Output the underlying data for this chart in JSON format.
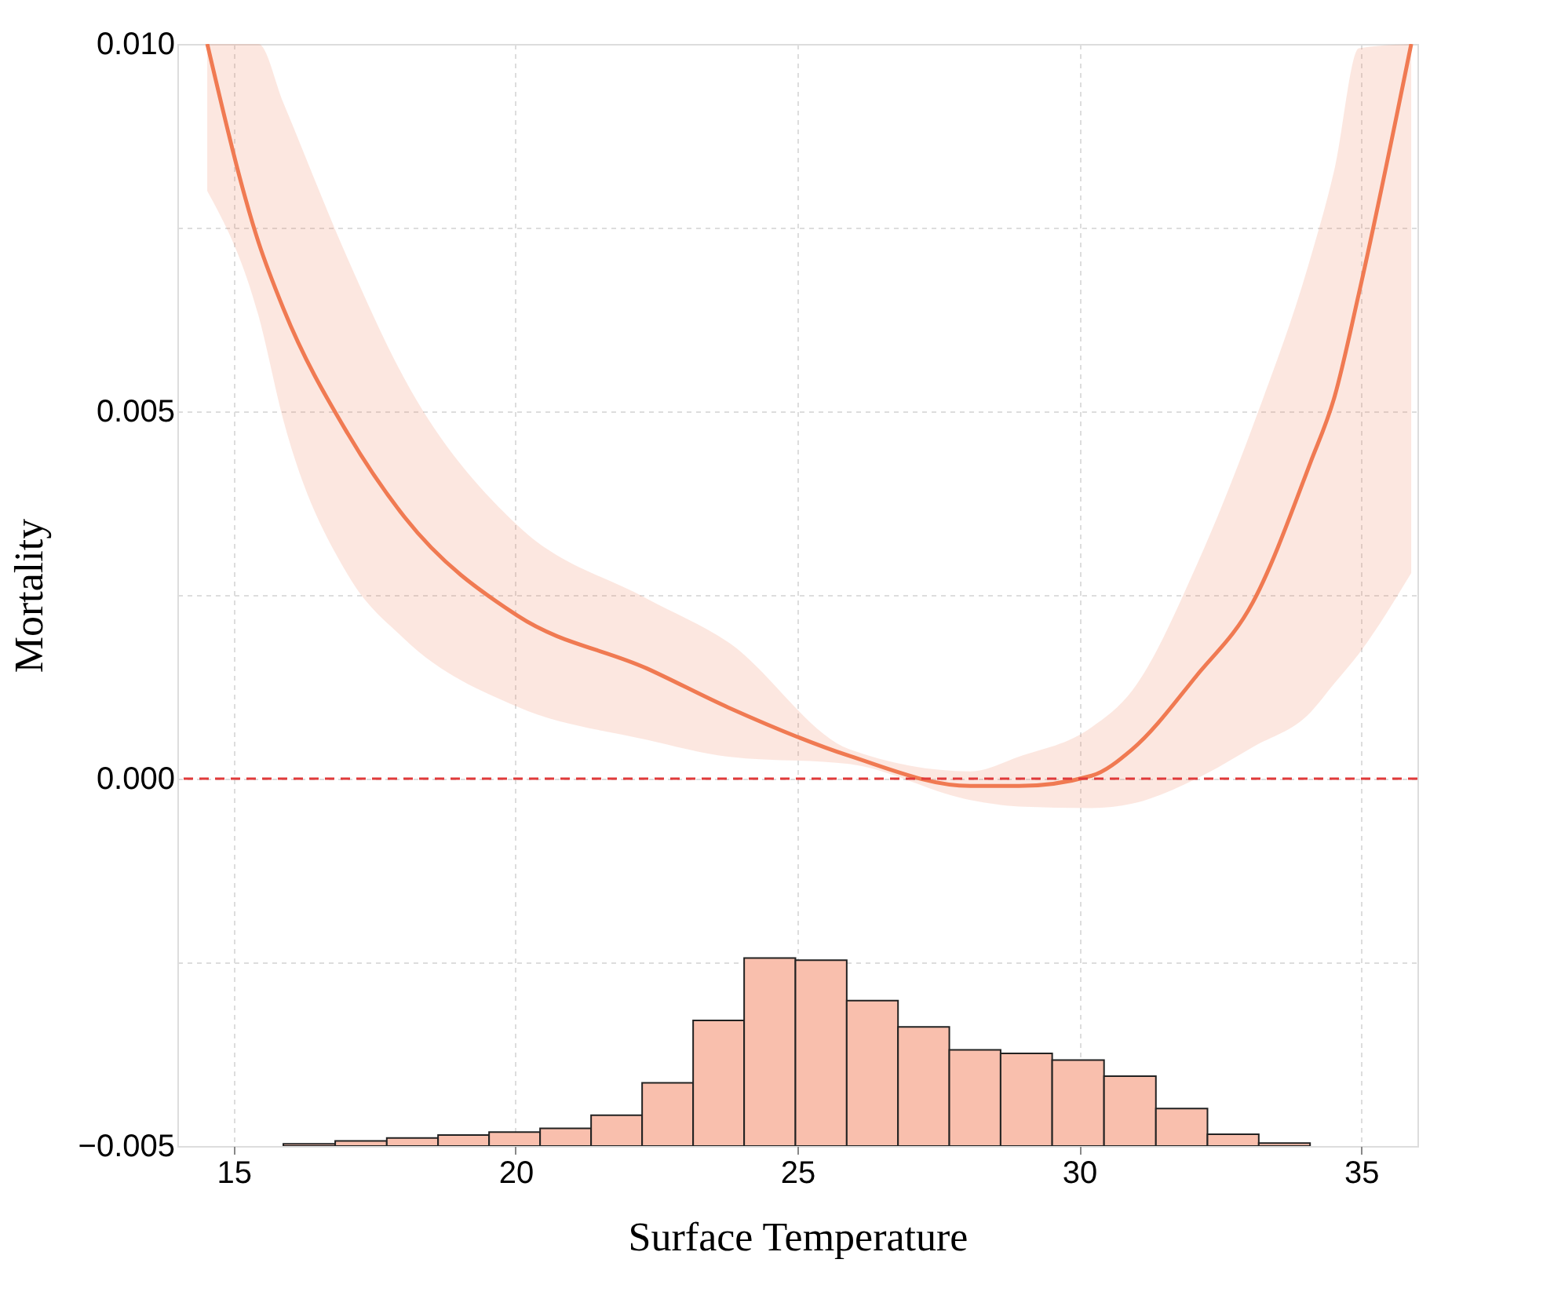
{
  "chart_data": {
    "type": "line",
    "xlabel": "Surface Temperature",
    "ylabel": "Mortality",
    "xlim": [
      14,
      36
    ],
    "xticks": [
      15,
      20,
      25,
      30,
      35
    ],
    "ylim": [
      -0.005,
      0.01
    ],
    "yticks": [
      {
        "value": -0.005,
        "label": "−0.005"
      },
      {
        "value": -0.0025,
        "label": null
      },
      {
        "value": 0.0,
        "label": "0.000"
      },
      {
        "value": 0.0025,
        "label": null
      },
      {
        "value": 0.005,
        "label": "0.005"
      },
      {
        "value": 0.0075,
        "label": null
      },
      {
        "value": 0.01,
        "label": "0.010"
      }
    ],
    "grid": true,
    "line_style": "solid",
    "series": [
      {
        "color": "#f07a52",
        "x": [
          14.53,
          15.44,
          15.88,
          17.02,
          18.03,
          20.03,
          22.33,
          23.77,
          25.92,
          28.07,
          28.93,
          30.22,
          30.94,
          32.08,
          33.08,
          34.1,
          34.53,
          34.96,
          35.89
        ],
        "values": [
          0.01,
          0.0073,
          0.0064,
          0.0047,
          0.00356,
          0.00222,
          0.0015,
          0.00097,
          0.00031,
          -0.0001,
          -0.0001,
          4e-05,
          0.0004,
          0.0014,
          0.0024,
          0.0043,
          0.0052,
          0.0066,
          0.01
        ],
        "upper": [
          0.01,
          0.01,
          0.0092,
          0.00708,
          0.00544,
          0.00345,
          0.00245,
          0.00186,
          0.0004,
          0.0001,
          0.0003,
          0.0007,
          0.0012,
          0.0029,
          0.0048,
          0.00708,
          0.0083,
          0.00994,
          0.01
        ],
        "lower": [
          0.008,
          0.0063,
          0.00488,
          0.00278,
          0.0019,
          0.00098,
          0.00053,
          0.0003,
          0.0002,
          -0.00029,
          -0.00038,
          -0.0004,
          -0.00034,
          0.0,
          0.00043,
          0.0009,
          0.0013,
          0.0017,
          0.0028
        ]
      },
      {
        "type": "bar",
        "color": "#f9bfad",
        "x": [
          16.34,
          17.26,
          18.17,
          19.08,
          19.98,
          20.89,
          21.79,
          22.7,
          23.6,
          24.51,
          25.42,
          26.33,
          27.24,
          28.15,
          29.06,
          29.98,
          30.9,
          31.82,
          32.73,
          33.64
        ],
        "base": [
          -0.005,
          -0.005,
          -0.005,
          -0.005,
          -0.005,
          -0.005,
          -0.005,
          -0.005,
          -0.005,
          -0.005,
          -0.005,
          -0.005,
          -0.005,
          -0.005,
          -0.005,
          -0.005,
          -0.005,
          -0.005,
          -0.005,
          -0.005
        ],
        "values": [
          3e-05,
          7e-05,
          0.00011,
          0.00015,
          0.00019,
          0.00024,
          0.00042,
          0.00086,
          0.00171,
          0.00256,
          0.00253,
          0.00198,
          0.00162,
          0.00131,
          0.00126,
          0.00117,
          0.00095,
          0.00051,
          0.00016,
          4e-05
        ]
      }
    ],
    "ref_lines": [
      {
        "axis": "y",
        "value": 0.0,
        "color": "#e03a3a",
        "line_style": "dashed"
      }
    ]
  }
}
